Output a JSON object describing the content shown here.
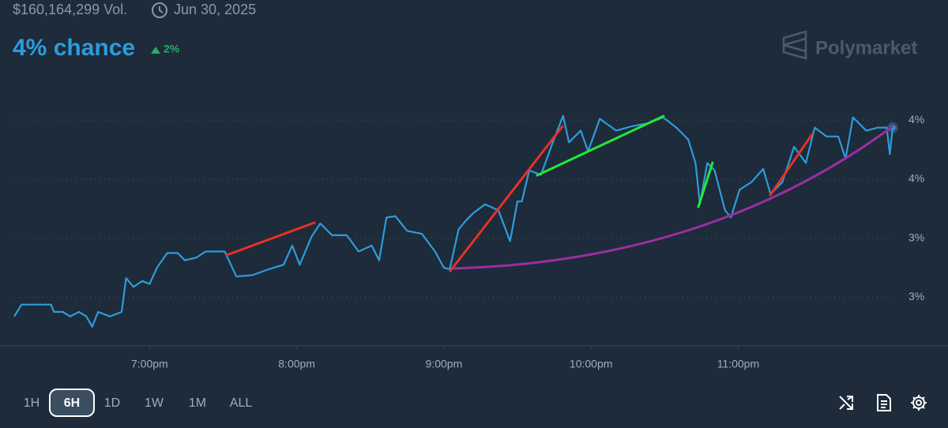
{
  "header": {
    "volume": "$160,164,299 Vol.",
    "date": "Jun 30, 2025",
    "headline": "4% chance",
    "change": "2%",
    "brand": "Polymarket"
  },
  "chart_data": {
    "type": "line",
    "color": "#2d9cdb",
    "x": [
      18.08,
      18.13,
      18.18,
      18.33,
      18.35,
      18.41,
      18.46,
      18.52,
      18.57,
      18.61,
      18.65,
      18.73,
      18.81,
      18.84,
      18.89,
      18.95,
      19.0,
      19.05,
      19.12,
      19.19,
      19.24,
      19.32,
      19.38,
      19.51,
      19.59,
      19.7,
      19.81,
      19.91,
      19.97,
      20.02,
      20.1,
      20.16,
      20.24,
      20.34,
      20.42,
      20.51,
      20.56,
      20.61,
      20.67,
      20.75,
      20.85,
      20.94,
      21.0,
      21.04,
      21.1,
      21.15,
      21.2,
      21.28,
      21.37,
      21.45,
      21.5,
      21.53,
      21.58,
      21.66,
      21.74,
      21.81,
      21.85,
      21.93,
      21.98,
      22.06,
      22.17,
      22.28,
      22.39,
      22.49,
      22.58,
      22.66,
      22.71,
      22.74,
      22.79,
      22.84,
      22.91,
      22.95,
      23.01,
      23.09,
      23.17,
      23.22,
      23.3,
      23.38,
      23.46,
      23.52,
      23.6,
      23.68,
      23.73,
      23.78,
      23.87,
      23.95,
      24.01,
      24.03,
      24.05
    ],
    "values": [
      2.67,
      2.75,
      2.75,
      2.75,
      2.7,
      2.7,
      2.67,
      2.7,
      2.67,
      2.6,
      2.7,
      2.67,
      2.7,
      2.93,
      2.87,
      2.91,
      2.89,
      3.0,
      3.1,
      3.1,
      3.05,
      3.07,
      3.11,
      3.11,
      2.94,
      2.95,
      2.99,
      3.02,
      3.15,
      3.02,
      3.21,
      3.3,
      3.22,
      3.22,
      3.11,
      3.15,
      3.05,
      3.34,
      3.35,
      3.25,
      3.23,
      3.11,
      3.0,
      2.99,
      3.26,
      3.32,
      3.37,
      3.43,
      3.39,
      3.18,
      3.45,
      3.45,
      3.66,
      3.63,
      3.85,
      4.03,
      3.85,
      3.93,
      3.79,
      4.01,
      3.93,
      3.96,
      3.98,
      4.02,
      3.95,
      3.87,
      3.71,
      3.43,
      3.71,
      3.66,
      3.39,
      3.34,
      3.53,
      3.58,
      3.67,
      3.5,
      3.58,
      3.82,
      3.71,
      3.95,
      3.89,
      3.89,
      3.74,
      4.02,
      3.93,
      3.95,
      3.95,
      3.77,
      3.95
    ],
    "xlim": [
      18.08,
      24.05
    ],
    "xticks": [
      {
        "value": 19,
        "label": "7:00pm"
      },
      {
        "value": 20,
        "label": "8:00pm"
      },
      {
        "value": 21,
        "label": "9:00pm"
      },
      {
        "value": 22,
        "label": "10:00pm"
      },
      {
        "value": 23,
        "label": "11:00pm"
      }
    ],
    "ylim": [
      2.47,
      4.28
    ],
    "yticks": [
      {
        "value": 2.8,
        "label": "3%"
      },
      {
        "value": 3.2,
        "label": "3%"
      },
      {
        "value": 3.6,
        "label": "4%"
      },
      {
        "value": 4.0,
        "label": "4%"
      }
    ],
    "grid": true
  },
  "controls": {
    "ranges": [
      "1H",
      "6H",
      "1D",
      "1W",
      "1M",
      "ALL"
    ],
    "selected": 1
  }
}
